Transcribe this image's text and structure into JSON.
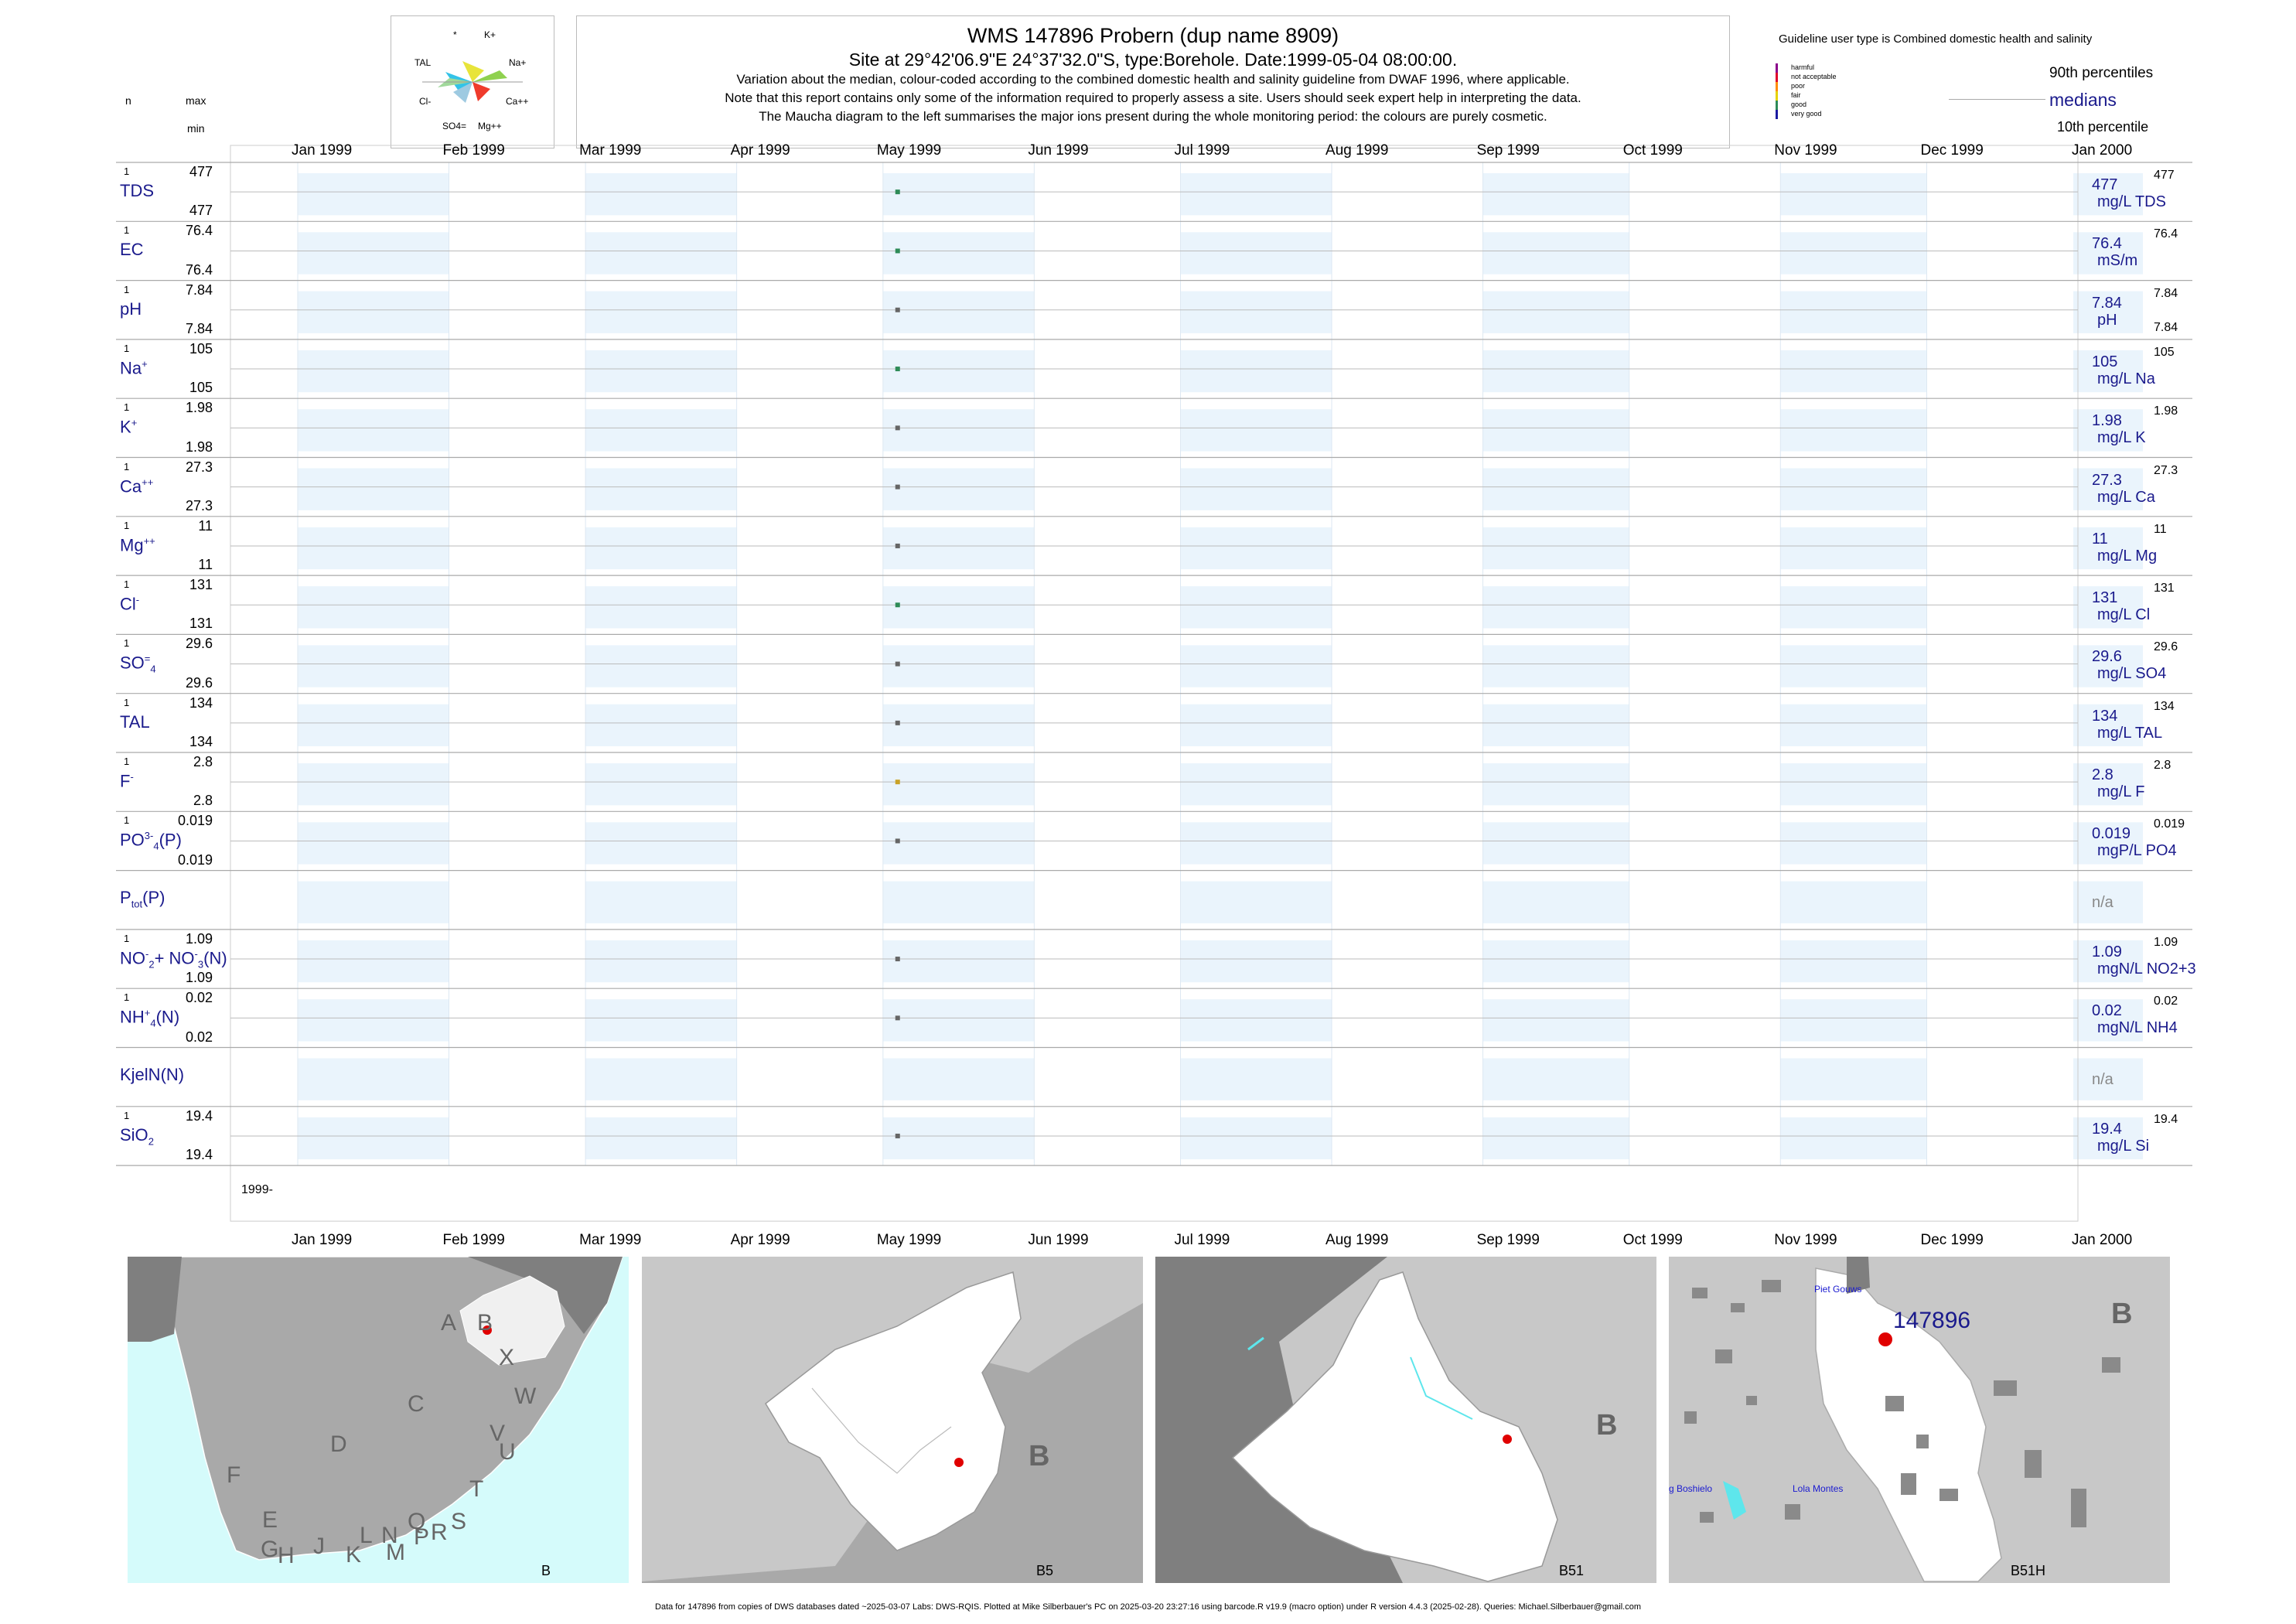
{
  "header": {
    "title": "WMS 147896  Probern (dup name 8909)",
    "subtitle": "Site at 29°42'06.9\"E 24°37'32.0\"S, type:Borehole. Date:1999-05-04 08:00:00.",
    "desc1": "Variation about the median,  colour-coded according to the combined domestic health and salinity guideline from DWAF 1996, where applicable.",
    "desc2": "Note that this report contains only some of the information required to properly assess a site. Users should seek expert help in interpreting the data.",
    "desc3": "The Maucha diagram to the left summarises the major ions present during the whole monitoring period: the colours are purely cosmetic."
  },
  "left_header": {
    "n": "n",
    "max": "max",
    "min": "min"
  },
  "maucha": {
    "labels": [
      "*",
      "K+",
      "TAL",
      "Na+",
      "Cl-",
      "Ca++",
      "SO4=",
      "Mg++"
    ]
  },
  "legend": {
    "guideline": "Guideline user type is Combined domestic health and salinity",
    "categories": [
      {
        "label": "harmful",
        "color": "#8b008b"
      },
      {
        "label": "not acceptable",
        "color": "#e0002a"
      },
      {
        "label": "poor",
        "color": "#ff8c00"
      },
      {
        "label": "fair",
        "color": "#e6d200"
      },
      {
        "label": "good",
        "color": "#2e8b57"
      },
      {
        "label": "very good",
        "color": "#1a1aa0"
      }
    ],
    "p90": "90th percentiles",
    "median": "medians",
    "p10": "10th percentile"
  },
  "chart_data": {
    "type": "scatter",
    "x_axis": {
      "ticks": [
        "Jan 1999",
        "Feb 1999",
        "Mar 1999",
        "Apr 1999",
        "May 1999",
        "Jun 1999",
        "Jul 1999",
        "Aug 1999",
        "Sep 1999",
        "Oct 1999",
        "Nov 1999",
        "Dec 1999",
        "Jan 2000"
      ],
      "range": [
        "1999-01-01",
        "2000-01-01"
      ],
      "year_label": "1999-"
    },
    "sample_date": "1999-05-04",
    "series": [
      {
        "name": "TDS",
        "sup": "",
        "sub": "",
        "n": "1",
        "max": "477",
        "min": "477",
        "value": 477,
        "median": "477",
        "unit": "mg/L TDS",
        "p90": "477",
        "p10": "",
        "color": "#2e8b57"
      },
      {
        "name": "EC",
        "sup": "",
        "sub": "",
        "n": "1",
        "max": "76.4",
        "min": "76.4",
        "value": 76.4,
        "median": "76.4",
        "unit": "mS/m",
        "p90": "76.4",
        "p10": "",
        "color": "#2e8b57"
      },
      {
        "name": "pH",
        "sup": "",
        "sub": "",
        "n": "1",
        "max": "7.84",
        "min": "7.84",
        "value": 7.84,
        "median": "7.84",
        "unit": "pH",
        "p90": "7.84",
        "p10": "7.84",
        "color": "#666666"
      },
      {
        "name": "Na",
        "sup": "+",
        "sub": "",
        "n": "1",
        "max": "105",
        "min": "105",
        "value": 105,
        "median": "105",
        "unit": "mg/L Na",
        "p90": "105",
        "p10": "",
        "color": "#2e8b57"
      },
      {
        "name": "K",
        "sup": "+",
        "sub": "",
        "n": "1",
        "max": "1.98",
        "min": "1.98",
        "value": 1.98,
        "median": "1.98",
        "unit": "mg/L K",
        "p90": "1.98",
        "p10": "",
        "color": "#666666"
      },
      {
        "name": "Ca",
        "sup": "++",
        "sub": "",
        "n": "1",
        "max": "27.3",
        "min": "27.3",
        "value": 27.3,
        "median": "27.3",
        "unit": "mg/L Ca",
        "p90": "27.3",
        "p10": "",
        "color": "#666666"
      },
      {
        "name": "Mg",
        "sup": "++",
        "sub": "",
        "n": "1",
        "max": "11",
        "min": "11",
        "value": 11,
        "median": "11",
        "unit": "mg/L Mg",
        "p90": "11",
        "p10": "",
        "color": "#666666"
      },
      {
        "name": "Cl",
        "sup": "-",
        "sub": "",
        "n": "1",
        "max": "131",
        "min": "131",
        "value": 131,
        "median": "131",
        "unit": "mg/L Cl",
        "p90": "131",
        "p10": "",
        "color": "#2e8b57"
      },
      {
        "name": "SO",
        "sup": "=",
        "sub": "4",
        "n": "1",
        "max": "29.6",
        "min": "29.6",
        "value": 29.6,
        "median": "29.6",
        "unit": "mg/L SO4",
        "p90": "29.6",
        "p10": "",
        "color": "#666666"
      },
      {
        "name": "TAL",
        "sup": "",
        "sub": "",
        "n": "1",
        "max": "134",
        "min": "134",
        "value": 134,
        "median": "134",
        "unit": "mg/L TAL",
        "p90": "134",
        "p10": "",
        "color": "#666666"
      },
      {
        "name": "F",
        "sup": "-",
        "sub": "",
        "n": "1",
        "max": "2.8",
        "min": "2.8",
        "value": 2.8,
        "median": "2.8",
        "unit": "mg/L F",
        "p90": "2.8",
        "p10": "",
        "color": "#c9a227"
      },
      {
        "name": "PO",
        "sup": "3-",
        "sub": "4",
        "suffix": "(P)",
        "n": "1",
        "max": "0.019",
        "min": "0.019",
        "value": 0.019,
        "median": "0.019",
        "unit": "mgP/L PO4",
        "p90": "0.019",
        "p10": "",
        "color": "#666666"
      },
      {
        "name": "P",
        "sup": "",
        "sub": "tot",
        "suffix": "(P)",
        "n": "",
        "max": "",
        "min": "",
        "value": null,
        "median": "",
        "unit": "",
        "p90": "",
        "p10": "",
        "na": "n/a",
        "color": "#666666"
      },
      {
        "name": "NO",
        "sup": "-",
        "sub": "2",
        "suffix": "+ NO",
        "sup2": "-",
        "sub2": "3",
        "suffix2": "(N)",
        "n": "1",
        "max": "1.09",
        "min": "1.09",
        "value": 1.09,
        "median": "1.09",
        "unit": "mgN/L NO2+3",
        "p90": "1.09",
        "p10": "",
        "color": "#666666"
      },
      {
        "name": "NH",
        "sup": "+",
        "sub": "4",
        "suffix": "(N)",
        "n": "1",
        "max": "0.02",
        "min": "0.02",
        "value": 0.02,
        "median": "0.02",
        "unit": "mgN/L NH4",
        "p90": "0.02",
        "p10": "",
        "color": "#666666"
      },
      {
        "name": "KjelN(N)",
        "sup": "",
        "sub": "",
        "n": "",
        "max": "",
        "min": "",
        "value": null,
        "median": "",
        "unit": "",
        "p90": "",
        "p10": "",
        "na": "n/a",
        "color": "#666666"
      },
      {
        "name": "SiO",
        "sup": "",
        "sub": "2",
        "n": "1",
        "max": "19.4",
        "min": "19.4",
        "value": 19.4,
        "median": "19.4",
        "unit": "mg/L Si",
        "p90": "19.4",
        "p10": "",
        "color": "#666666"
      }
    ]
  },
  "maps": [
    {
      "caption": "B",
      "letters": [
        "A",
        "B",
        "X",
        "W",
        "C",
        "V",
        "U",
        "D",
        "T",
        "F",
        "E",
        "S",
        "R",
        "Q",
        "P",
        "N",
        "M",
        "L",
        "K",
        "J",
        "H",
        "G"
      ]
    },
    {
      "caption": "B5",
      "region": "B"
    },
    {
      "caption": "B51",
      "region": "B"
    },
    {
      "caption": "B51H",
      "region": "B",
      "site": "147896",
      "places": [
        "Piet Gouws",
        "Lola Montes",
        "g Boshielo"
      ]
    }
  ],
  "footer": "Data for 147896 from copies of DWS databases dated ~2025-03-07 Labs: DWS-RQIS. Plotted at Mike Silberbauer's PC on 2025-03-20 23:27:16 using barcode.R v19.9 (macro option) under R version 4.4.3 (2025-02-28). Queries: Michael.Silberbauer@gmail.com"
}
